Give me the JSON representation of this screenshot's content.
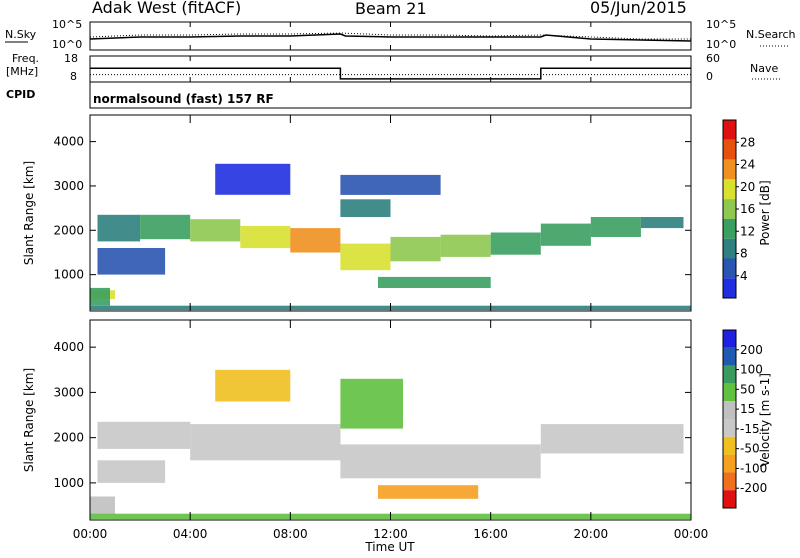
{
  "header": {
    "station": "Adak West (fitACF)",
    "beam": "Beam 21",
    "date": "05/Jun/2015"
  },
  "labels": {
    "nsky": "N.Sky",
    "nsearch": "N.Search",
    "freq_line1": "Freq.",
    "freq_line2": "[MHz]",
    "nave": "Nave",
    "cpid": "CPID",
    "program": "normalsound (fast) 157 RF",
    "time_axis": "Time UT"
  },
  "colors": {
    "power": [
      "#2030e0",
      "#2a55b0",
      "#2f8080",
      "#3aa060",
      "#8fc850",
      "#d8e030",
      "#f09020",
      "#e85010",
      "#e01010"
    ],
    "velocity": [
      "#e01010",
      "#f07020",
      "#f5a020",
      "#f0c020",
      "#c8c8c8",
      "#c0c0c0",
      "#60c040",
      "#3a9a60",
      "#205ab0",
      "#2020e0"
    ],
    "trace": "#000000"
  },
  "chart_data": [
    {
      "id": "noise",
      "type": "line",
      "series": [
        {
          "name": "N.Sky",
          "x": [
            0,
            2,
            4,
            6,
            8,
            10,
            10.2,
            12,
            14,
            16,
            18,
            18.2,
            20,
            22,
            24
          ],
          "values": [
            0.7,
            0.9,
            0.9,
            1.0,
            1.0,
            1.2,
            1.0,
            0.9,
            0.9,
            0.9,
            0.9,
            1.1,
            0.7,
            0.6,
            0.5
          ]
        },
        {
          "name": "N.Search",
          "x": [
            0,
            2,
            4,
            6,
            8,
            10,
            12,
            14,
            16,
            18,
            20,
            22,
            24
          ],
          "values": [
            0.9,
            1.1,
            1.1,
            1.2,
            1.2,
            1.3,
            1.1,
            1.1,
            1.0,
            1.1,
            0.9,
            0.7,
            0.7
          ]
        }
      ],
      "yticks_left": [
        "10^5",
        "10^0"
      ],
      "yticks_right": [
        "10^5",
        "10^0"
      ],
      "xlim": [
        0,
        24
      ]
    },
    {
      "id": "freq",
      "type": "line",
      "series": [
        {
          "name": "Freq.",
          "x": [
            0,
            10,
            10,
            18,
            18,
            24
          ],
          "values": [
            13.3,
            13.3,
            9.2,
            9.2,
            13.3,
            13.3
          ]
        },
        {
          "name": "Nave",
          "x": [
            0,
            24
          ],
          "values": [
            17,
            17
          ]
        }
      ],
      "yticks_left": [
        "18",
        "8"
      ],
      "yticks_right": [
        "60",
        "0"
      ],
      "ylim_left": [
        8,
        18
      ],
      "ylim_right": [
        0,
        60
      ],
      "xlim": [
        0,
        24
      ]
    },
    {
      "id": "power",
      "type": "heatmap",
      "ylabel": "Slant Range [km]",
      "colorbar_label": "Power [dB]",
      "yticks": [
        1000,
        2000,
        3000,
        4000
      ],
      "ylim": [
        180,
        4600
      ],
      "xlim": [
        0,
        24
      ],
      "xticks": [
        "00:00",
        "04:00",
        "08:00",
        "12:00",
        "16:00",
        "20:00",
        "00:00"
      ],
      "colorbar_ticks": [
        "4",
        "8",
        "12",
        "16",
        "20",
        "24",
        "28"
      ],
      "bands": [
        {
          "t": [
            0.0,
            1.0
          ],
          "r": [
            450,
            650
          ],
          "level": 5
        },
        {
          "t": [
            0.0,
            0.8
          ],
          "r": [
            300,
            700
          ],
          "level": 3
        },
        {
          "t": [
            0.3,
            2.0
          ],
          "r": [
            1750,
            2350
          ],
          "level": 2
        },
        {
          "t": [
            2.0,
            4.0
          ],
          "r": [
            1800,
            2350
          ],
          "level": 3
        },
        {
          "t": [
            4.0,
            6.0
          ],
          "r": [
            1750,
            2250
          ],
          "level": 4
        },
        {
          "t": [
            6.0,
            8.0
          ],
          "r": [
            1600,
            2100
          ],
          "level": 5
        },
        {
          "t": [
            8.0,
            10.0
          ],
          "r": [
            1500,
            2050
          ],
          "level": 6
        },
        {
          "t": [
            10.0,
            12.0
          ],
          "r": [
            1100,
            1700
          ],
          "level": 5
        },
        {
          "t": [
            12.0,
            14.0
          ],
          "r": [
            1300,
            1850
          ],
          "level": 4
        },
        {
          "t": [
            14.0,
            16.0
          ],
          "r": [
            1400,
            1900
          ],
          "level": 4
        },
        {
          "t": [
            16.0,
            18.0
          ],
          "r": [
            1450,
            1950
          ],
          "level": 3
        },
        {
          "t": [
            18.0,
            20.0
          ],
          "r": [
            1650,
            2150
          ],
          "level": 3
        },
        {
          "t": [
            20.0,
            22.0
          ],
          "r": [
            1850,
            2300
          ],
          "level": 3
        },
        {
          "t": [
            22.0,
            23.7
          ],
          "r": [
            2050,
            2300
          ],
          "level": 2
        },
        {
          "t": [
            11.5,
            16.0
          ],
          "r": [
            700,
            950
          ],
          "level": 3
        },
        {
          "t": [
            10.0,
            12.0
          ],
          "r": [
            2300,
            2700
          ],
          "level": 2
        },
        {
          "t": [
            10.0,
            14.0
          ],
          "r": [
            2800,
            3250
          ],
          "level": 1
        },
        {
          "t": [
            0.3,
            3.0
          ],
          "r": [
            1000,
            1600
          ],
          "level": 1
        },
        {
          "t": [
            5.0,
            8.0
          ],
          "r": [
            2800,
            3500
          ],
          "level": 0
        },
        {
          "t": [
            0.0,
            24.0
          ],
          "r": [
            200,
            300
          ],
          "level": 2
        }
      ]
    },
    {
      "id": "velocity",
      "type": "heatmap",
      "ylabel": "Slant Range [km]",
      "colorbar_label": "Velocity [m s-1]",
      "yticks": [
        1000,
        2000,
        3000,
        4000
      ],
      "ylim": [
        180,
        4600
      ],
      "xlim": [
        0,
        24
      ],
      "xticks": [
        "00:00",
        "04:00",
        "08:00",
        "12:00",
        "16:00",
        "20:00",
        "00:00"
      ],
      "colorbar_ticks": [
        "200",
        "100",
        "50",
        "15",
        "-15",
        "-50",
        "-100",
        "-200"
      ],
      "bands": [
        {
          "t": [
            0.0,
            1.0
          ],
          "r": [
            300,
            700
          ],
          "level": 5
        },
        {
          "t": [
            0.3,
            4.0
          ],
          "r": [
            1750,
            2350
          ],
          "level": 4
        },
        {
          "t": [
            4.0,
            10.0
          ],
          "r": [
            1500,
            2300
          ],
          "level": 4
        },
        {
          "t": [
            10.0,
            18.0
          ],
          "r": [
            1100,
            1850
          ],
          "level": 4
        },
        {
          "t": [
            18.0,
            23.7
          ],
          "r": [
            1650,
            2300
          ],
          "level": 4
        },
        {
          "t": [
            11.5,
            15.5
          ],
          "r": [
            650,
            950
          ],
          "level": 2
        },
        {
          "t": [
            10.0,
            12.5
          ],
          "r": [
            2200,
            3300
          ],
          "level": 6
        },
        {
          "t": [
            5.0,
            8.0
          ],
          "r": [
            2800,
            3500
          ],
          "level": 3
        },
        {
          "t": [
            0.3,
            3.0
          ],
          "r": [
            1000,
            1500
          ],
          "level": 4
        },
        {
          "t": [
            0.0,
            24.0
          ],
          "r": [
            200,
            320
          ],
          "level": 6
        }
      ]
    }
  ]
}
